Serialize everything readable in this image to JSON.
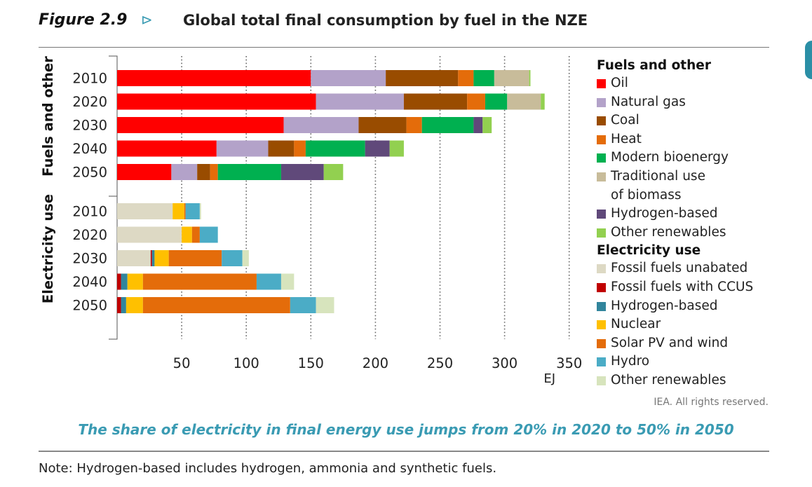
{
  "header": {
    "figure_number": "Figure 2.9",
    "arrow": "⊳",
    "title": "Global total final consumption by fuel in the NZE"
  },
  "chart_data": {
    "type": "bar",
    "orientation": "horizontal",
    "stacked": true,
    "unit": "EJ",
    "xlabel": "EJ",
    "xlim": [
      0,
      350
    ],
    "x_ticks": [
      50,
      100,
      150,
      200,
      250,
      300,
      350
    ],
    "grid": "vertical dotted",
    "legend_placement": "right",
    "groups": [
      {
        "name": "Fuels and other",
        "categories": [
          "2010",
          "2020",
          "2030",
          "2040",
          "2050"
        ],
        "series": [
          {
            "name": "Oil",
            "color": "#ff0000",
            "values": [
              150,
              154,
              129,
              77,
              42
            ]
          },
          {
            "name": "Natural gas",
            "color": "#b3a2c9",
            "values": [
              58,
              68,
              58,
              40,
              20
            ]
          },
          {
            "name": "Coal",
            "color": "#994c00",
            "values": [
              56,
              49,
              37,
              20,
              10
            ]
          },
          {
            "name": "Heat",
            "color": "#e46c0a",
            "values": [
              12,
              14,
              12,
              9,
              6
            ]
          },
          {
            "name": "Modern bioenergy",
            "color": "#00b050",
            "values": [
              16,
              17,
              40,
              46,
              49
            ]
          },
          {
            "name": "Traditional use of biomass",
            "color": "#c8bc9a",
            "values": [
              27,
              26,
              0,
              0,
              0
            ]
          },
          {
            "name": "Hydrogen-based",
            "color": "#60497a",
            "values": [
              0,
              0,
              7,
              19,
              33
            ]
          },
          {
            "name": "Other renewables",
            "color": "#92d050",
            "values": [
              1,
              3,
              7,
              11,
              15
            ]
          }
        ]
      },
      {
        "name": "Electricity use",
        "categories": [
          "2010",
          "2020",
          "2030",
          "2040",
          "2050"
        ],
        "series": [
          {
            "name": "Fossil fuels unabated",
            "color": "#ddd9c4",
            "values": [
              43,
              50,
              26,
              0,
              0
            ]
          },
          {
            "name": "Fossil fuels with CCUS",
            "color": "#c00000",
            "values": [
              0,
              0,
              1,
              3,
              3
            ]
          },
          {
            "name": "Hydrogen-based",
            "color": "#31859c",
            "values": [
              0,
              0,
              2,
              5,
              4
            ]
          },
          {
            "name": "Nuclear",
            "color": "#ffc000",
            "values": [
              9,
              8,
              11,
              12,
              13
            ]
          },
          {
            "name": "Solar PV and wind",
            "color": "#e46c0a",
            "values": [
              1,
              6,
              41,
              88,
              114
            ]
          },
          {
            "name": "Hydro",
            "color": "#4bacc6",
            "values": [
              11,
              14,
              16,
              19,
              20
            ]
          },
          {
            "name": "Other renewables",
            "color": "#d7e4bd",
            "values": [
              1,
              0,
              5,
              10,
              14
            ]
          }
        ]
      }
    ]
  },
  "legend": {
    "sections": [
      {
        "title": "Fuels and other",
        "items": [
          {
            "label": "Oil",
            "color": "#ff0000"
          },
          {
            "label": "Natural gas",
            "color": "#b3a2c9"
          },
          {
            "label": "Coal",
            "color": "#994c00"
          },
          {
            "label": "Heat",
            "color": "#e46c0a"
          },
          {
            "label": "Modern bioenergy",
            "color": "#00b050"
          },
          {
            "label": "Traditional use",
            "label2": "of biomass",
            "color": "#c8bc9a"
          },
          {
            "label": "Hydrogen-based",
            "color": "#60497a"
          },
          {
            "label": "Other renewables",
            "color": "#92d050"
          }
        ]
      },
      {
        "title": "Electricity use",
        "items": [
          {
            "label": "Fossil fuels unabated",
            "color": "#ddd9c4"
          },
          {
            "label": "Fossil fuels with CCUS",
            "color": "#c00000"
          },
          {
            "label": "Hydrogen-based",
            "color": "#31859c"
          },
          {
            "label": "Nuclear",
            "color": "#ffc000"
          },
          {
            "label": "Solar PV and wind",
            "color": "#e46c0a"
          },
          {
            "label": "Hydro",
            "color": "#4bacc6"
          },
          {
            "label": "Other renewables",
            "color": "#d7e4bd"
          }
        ]
      }
    ]
  },
  "credit": "IEA. All rights reserved.",
  "caption": "The share of electricity in final energy use jumps from 20% in 2020 to 50% in 2050",
  "note": "Note: Hydrogen-based includes hydrogen, ammonia and synthetic fuels.",
  "colors": {
    "accent": "#3a9bb3",
    "rule": "#888888"
  }
}
